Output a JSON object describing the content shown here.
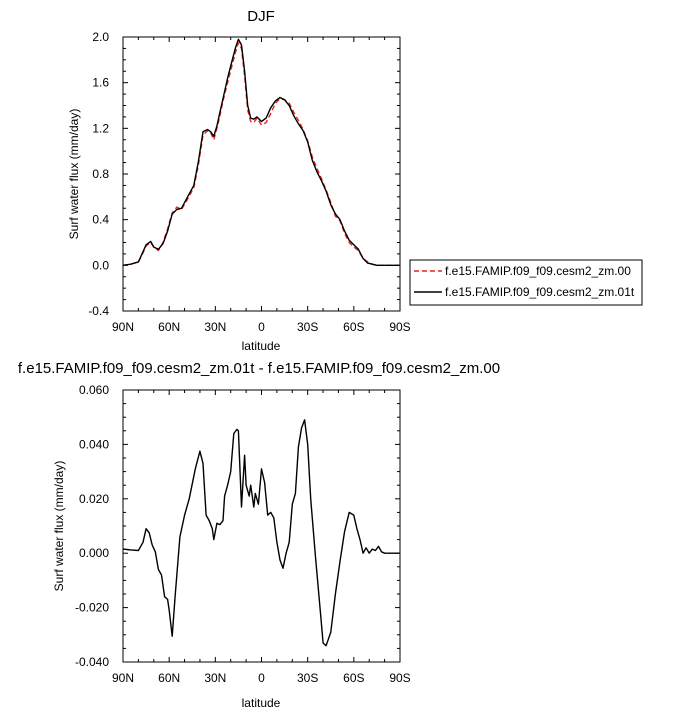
{
  "chart_data": [
    {
      "type": "line",
      "title": "DJF",
      "xlabel": "latitude",
      "ylabel": "Surf water flux (mm/day)",
      "xlim": [
        -90,
        90
      ],
      "ylim": [
        -0.4,
        2.0
      ],
      "xtick_values": [
        -90,
        -60,
        -30,
        0,
        30,
        60,
        90
      ],
      "xtick_labels": [
        "90N",
        "60N",
        "30N",
        "0",
        "30S",
        "60S",
        "90S"
      ],
      "ytick_values": [
        -0.4,
        0.0,
        0.4,
        0.8,
        1.2,
        1.6,
        2.0
      ],
      "ytick_labels": [
        "-0.4",
        "0.0",
        "0.4",
        "0.8",
        "1.2",
        "1.6",
        "2.0"
      ],
      "legend_position": "right",
      "series": [
        {
          "name": "f.e15.FAMIP.f09_f09.cesm2_zm.00",
          "color": "#e8221f",
          "dash": "dashed",
          "x": [
            -90,
            -85,
            -80,
            -78,
            -75,
            -72,
            -70,
            -67,
            -64,
            -61,
            -58,
            -55,
            -52,
            -48,
            -44,
            -41,
            -38,
            -35,
            -33,
            -31,
            -29,
            -27,
            -25,
            -22,
            -19,
            -17,
            -15,
            -13,
            -11,
            -9,
            -7,
            -5,
            -3,
            0,
            3,
            6,
            9,
            12,
            15,
            18,
            21,
            24,
            27,
            30,
            33,
            36,
            39,
            42,
            45,
            48,
            51,
            54,
            57,
            60,
            63,
            66,
            69,
            72,
            75,
            78,
            81,
            84,
            87,
            90
          ],
          "y": [
            0.0,
            0.01,
            0.03,
            0.08,
            0.17,
            0.2,
            0.16,
            0.13,
            0.2,
            0.32,
            0.46,
            0.51,
            0.49,
            0.58,
            0.68,
            0.88,
            1.14,
            1.18,
            1.16,
            1.1,
            1.2,
            1.31,
            1.44,
            1.6,
            1.76,
            1.86,
            1.95,
            1.9,
            1.66,
            1.36,
            1.26,
            1.25,
            1.29,
            1.23,
            1.25,
            1.33,
            1.42,
            1.46,
            1.45,
            1.42,
            1.34,
            1.27,
            1.19,
            1.09,
            0.95,
            0.85,
            0.76,
            0.66,
            0.55,
            0.43,
            0.39,
            0.28,
            0.2,
            0.16,
            0.13,
            0.06,
            0.03,
            0.01,
            0.0,
            0.0,
            0.0,
            0.0,
            0.0,
            0.0
          ]
        },
        {
          "name": "f.e15.FAMIP.f09_f09.cesm2_zm.01t",
          "color": "#000000",
          "dash": "solid",
          "x": [
            -90,
            -85,
            -80,
            -78,
            -75,
            -72,
            -70,
            -67,
            -64,
            -61,
            -58,
            -55,
            -52,
            -48,
            -44,
            -41,
            -38,
            -35,
            -33,
            -31,
            -29,
            -27,
            -25,
            -22,
            -19,
            -17,
            -15,
            -13,
            -11,
            -9,
            -7,
            -5,
            -3,
            0,
            3,
            6,
            9,
            12,
            15,
            18,
            21,
            24,
            27,
            30,
            33,
            36,
            39,
            42,
            45,
            48,
            51,
            54,
            57,
            60,
            63,
            66,
            69,
            72,
            75,
            78,
            81,
            84,
            87,
            90
          ],
          "y": [
            0.0,
            0.01,
            0.03,
            0.09,
            0.18,
            0.21,
            0.16,
            0.14,
            0.19,
            0.3,
            0.45,
            0.49,
            0.5,
            0.6,
            0.7,
            0.91,
            1.17,
            1.19,
            1.17,
            1.13,
            1.22,
            1.34,
            1.46,
            1.64,
            1.8,
            1.9,
            1.98,
            1.93,
            1.7,
            1.4,
            1.29,
            1.28,
            1.3,
            1.26,
            1.29,
            1.38,
            1.44,
            1.47,
            1.45,
            1.4,
            1.31,
            1.24,
            1.18,
            1.08,
            0.92,
            0.82,
            0.74,
            0.65,
            0.53,
            0.45,
            0.4,
            0.3,
            0.22,
            0.18,
            0.14,
            0.06,
            0.02,
            0.01,
            0.0,
            0.0,
            0.0,
            0.0,
            0.0,
            0.0
          ]
        }
      ]
    },
    {
      "type": "line",
      "title": "f.e15.FAMIP.f09_f09.cesm2_zm.01t - f.e15.FAMIP.f09_f09.cesm2_zm.00",
      "xlabel": "latitude",
      "ylabel": "Surf water flux (mm/day)",
      "xlim": [
        -90,
        90
      ],
      "ylim": [
        -0.04,
        0.06
      ],
      "xtick_values": [
        -90,
        -60,
        -30,
        0,
        30,
        60,
        90
      ],
      "xtick_labels": [
        "90N",
        "60N",
        "30N",
        "0",
        "30S",
        "60S",
        "90S"
      ],
      "ytick_values": [
        -0.04,
        -0.02,
        0.0,
        0.02,
        0.04,
        0.06
      ],
      "ytick_labels": [
        "-0.040",
        "-0.020",
        "0.000",
        "0.020",
        "0.040",
        "0.060"
      ],
      "series": [
        {
          "color": "#000000",
          "dash": "solid",
          "x": [
            -90,
            -85,
            -80,
            -77,
            -75,
            -73,
            -71,
            -69,
            -67,
            -65,
            -63,
            -61,
            -60,
            -58,
            -56,
            -53,
            -50,
            -47,
            -43,
            -40,
            -38,
            -36,
            -34,
            -32,
            -31,
            -29,
            -27,
            -25,
            -24,
            -22,
            -20,
            -18,
            -16,
            -15,
            -13,
            -11,
            -10,
            -8,
            -7,
            -5,
            -4,
            -2,
            0,
            2,
            4,
            6,
            8,
            10,
            12,
            14,
            16,
            18,
            20,
            22,
            24,
            26,
            28,
            30,
            32,
            35,
            38,
            40,
            42,
            45,
            48,
            51,
            54,
            57,
            60,
            62,
            64,
            66,
            68,
            70,
            72,
            74,
            76,
            78,
            80,
            85,
            90
          ],
          "y": [
            0.0015,
            0.0012,
            0.001,
            0.004,
            0.009,
            0.0075,
            0.003,
            0.0005,
            -0.006,
            -0.008,
            -0.016,
            -0.017,
            -0.021,
            -0.0305,
            -0.015,
            0.006,
            0.014,
            0.02,
            0.031,
            0.0375,
            0.033,
            0.014,
            0.012,
            0.009,
            0.005,
            0.011,
            0.0105,
            0.012,
            0.021,
            0.025,
            0.03,
            0.044,
            0.0455,
            0.045,
            0.017,
            0.036,
            0.025,
            0.021,
            0.025,
            0.017,
            0.022,
            0.018,
            0.031,
            0.026,
            0.014,
            0.015,
            0.013,
            0.004,
            -0.0025,
            -0.0055,
            0.0,
            0.004,
            0.018,
            0.022,
            0.039,
            0.046,
            0.049,
            0.04,
            0.02,
            -0.001,
            -0.02,
            -0.033,
            -0.034,
            -0.029,
            -0.015,
            -0.003,
            0.008,
            0.015,
            0.014,
            0.009,
            0.005,
            0.0,
            0.002,
            0.0,
            0.0015,
            0.001,
            0.0025,
            0.0005,
            0.0,
            0.0,
            0.0
          ]
        }
      ]
    }
  ]
}
